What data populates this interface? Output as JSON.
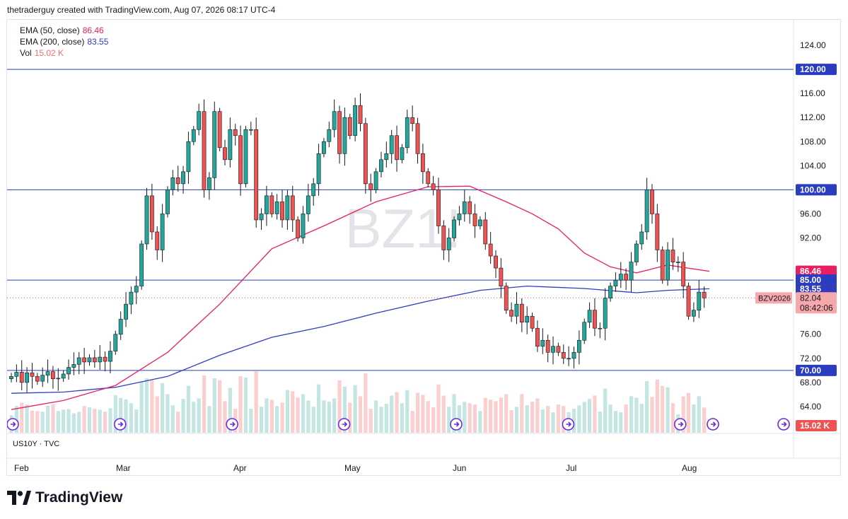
{
  "header": {
    "text": "thetraderguy created with TradingView.com, Aug 07, 2026 08:17 UTC-4"
  },
  "legend": {
    "ema50": {
      "label": "EMA (50, close)",
      "value": "86.46",
      "color": "#e91e63"
    },
    "ema200": {
      "label": "EMA (200, close)",
      "value": "83.55",
      "color": "#2f3dbd"
    },
    "vol": {
      "label": "Vol",
      "value": "15.02 K",
      "color": "#f06e75"
    }
  },
  "watermark": "BZ1!",
  "sub_pane_label": "US10Y · TVC",
  "brand": {
    "name": "TradingView"
  },
  "colors": {
    "up": "#26a69a",
    "down": "#ef5350",
    "hline": "#2a3dc0",
    "grid": "#e0e3eb"
  },
  "chart_data": {
    "type": "candlestick",
    "ylim": [
      58,
      126
    ],
    "y_ticks": [
      "124.00",
      "116.00",
      "112.00",
      "108.00",
      "104.00",
      "96.00",
      "92.00",
      "76.00",
      "72.00",
      "68.00",
      "64.00"
    ],
    "x_ticks": [
      "Feb",
      "Mar",
      "Apr",
      "May",
      "Jun",
      "Jul",
      "Aug"
    ],
    "horizontal_lines": [
      120,
      100,
      85,
      70
    ],
    "price_labels": [
      {
        "text": "120.00",
        "value": 120,
        "bg": "#2a3dc0"
      },
      {
        "text": "100.00",
        "value": 100,
        "bg": "#2a3dc0"
      },
      {
        "text": "86.46",
        "value": 86.46,
        "bg": "#e91e63"
      },
      {
        "text": "85.00",
        "value": 85,
        "bg": "#2a3dc0"
      },
      {
        "text": "83.55",
        "value": 83.55,
        "bg": "#2f3dbd"
      },
      {
        "text": "70.00",
        "value": 70,
        "bg": "#2a3dc0"
      }
    ],
    "last_price": {
      "symbol": "BZV2026",
      "value": "82.04",
      "countdown": "08:42:06"
    },
    "volume_last": "15.02 K",
    "days": [
      "Feb 02",
      "Feb 03",
      "Feb 04",
      "Feb 05",
      "Feb 06",
      "Feb 09",
      "Feb 10",
      "Feb 11",
      "Feb 12",
      "Feb 13",
      "Feb 16",
      "Feb 17",
      "Feb 18",
      "Feb 19",
      "Feb 20",
      "Feb 23",
      "Feb 24",
      "Feb 25",
      "Feb 26",
      "Feb 27",
      "Mar 02",
      "Mar 03",
      "Mar 04",
      "Mar 05",
      "Mar 06",
      "Mar 09",
      "Mar 10",
      "Mar 11",
      "Mar 12",
      "Mar 13",
      "Mar 16",
      "Mar 17",
      "Mar 18",
      "Mar 19",
      "Mar 20",
      "Mar 23",
      "Mar 24",
      "Mar 25",
      "Mar 26",
      "Mar 27",
      "Mar 30",
      "Mar 31",
      "Apr 01",
      "Apr 02",
      "Apr 03",
      "Apr 06",
      "Apr 07",
      "Apr 08",
      "Apr 09",
      "Apr 10",
      "Apr 13",
      "Apr 14",
      "Apr 15",
      "Apr 16",
      "Apr 17",
      "Apr 20",
      "Apr 21",
      "Apr 22",
      "Apr 23",
      "Apr 24",
      "Apr 27",
      "Apr 28",
      "Apr 29",
      "Apr 30",
      "May 01",
      "May 04",
      "May 05",
      "May 06",
      "May 07",
      "May 08",
      "May 11",
      "May 12",
      "May 13",
      "May 14",
      "May 15",
      "May 18",
      "May 19",
      "May 20",
      "May 21",
      "May 22",
      "May 25",
      "May 26",
      "May 27",
      "May 28",
      "May 29",
      "Jun 01",
      "Jun 02",
      "Jun 03",
      "Jun 04",
      "Jun 05",
      "Jun 08",
      "Jun 09",
      "Jun 10",
      "Jun 11",
      "Jun 12",
      "Jun 15",
      "Jun 16",
      "Jun 17",
      "Jun 18",
      "Jun 19",
      "Jun 22",
      "Jun 23",
      "Jun 24",
      "Jun 25",
      "Jun 26",
      "Jun 29",
      "Jun 30",
      "Jul 01",
      "Jul 02",
      "Jul 03",
      "Jul 06",
      "Jul 07",
      "Jul 08",
      "Jul 09",
      "Jul 10",
      "Jul 13",
      "Jul 14",
      "Jul 15",
      "Jul 16",
      "Jul 17",
      "Jul 20",
      "Jul 21",
      "Jul 22",
      "Jul 23",
      "Jul 24",
      "Jul 27",
      "Jul 28",
      "Jul 29",
      "Jul 30",
      "Jul 31",
      "Aug 03",
      "Aug 04",
      "Aug 05",
      "Aug 06",
      "Aug 07"
    ],
    "closes": [
      69.0,
      69.7,
      68.0,
      69.6,
      69.0,
      68.2,
      69.2,
      69.8,
      68.6,
      68.7,
      69.4,
      70.5,
      71.0,
      72.1,
      71.4,
      72.1,
      71.4,
      72.2,
      71.5,
      73.2,
      76.0,
      78.5,
      81.0,
      83.0,
      84.0,
      91.0,
      99.0,
      93.0,
      90.0,
      96.0,
      100.0,
      102.0,
      101.0,
      103.0,
      108.0,
      110.0,
      113.0,
      100.0,
      102.0,
      113.0,
      107.0,
      105.0,
      110.0,
      109.0,
      101.0,
      110.0,
      110.0,
      95.0,
      96.0,
      99.0,
      96.0,
      98.0,
      95.0,
      99.0,
      95.0,
      92.0,
      96.0,
      99.0,
      101.0,
      106.0,
      108.0,
      110.0,
      113.0,
      106.0,
      112.0,
      109.0,
      114.0,
      111.0,
      101.0,
      100.0,
      103.0,
      105.0,
      106.0,
      109.0,
      105.0,
      107.0,
      112.0,
      111.0,
      106.0,
      103.0,
      101.0,
      100.0,
      94.0,
      90.0,
      92.0,
      95.0,
      96.0,
      98.0,
      96.0,
      94.0,
      95.0,
      91.0,
      89.0,
      87.0,
      84.0,
      80.0,
      79.0,
      81.0,
      78.0,
      79.0,
      77.0,
      74.0,
      75.0,
      73.0,
      74.0,
      73.0,
      72.0,
      72.0,
      73.0,
      75.0,
      78.0,
      80.0,
      77.0,
      77.0,
      82.0,
      84.0,
      85.0,
      86.0,
      85.0,
      88.0,
      91.0,
      93.0,
      100.0,
      96.0,
      90.0,
      85.0,
      90.0,
      88.0,
      88.0,
      84.0,
      79.0,
      80.0,
      83.0,
      82.04
    ],
    "ema50_series": [
      [
        0,
        63.5
      ],
      [
        10,
        65
      ],
      [
        20,
        67.5
      ],
      [
        30,
        73
      ],
      [
        40,
        81
      ],
      [
        50,
        90.2
      ],
      [
        60,
        94
      ],
      [
        70,
        98
      ],
      [
        80,
        100.5
      ],
      [
        88,
        100.6
      ],
      [
        95,
        98
      ],
      [
        100,
        96
      ],
      [
        105,
        93.5
      ],
      [
        110,
        89.5
      ],
      [
        115,
        87.2
      ],
      [
        120,
        86.2
      ],
      [
        126,
        87.5
      ],
      [
        134,
        86.46
      ]
    ],
    "ema200_series": [
      [
        0,
        66.2
      ],
      [
        10,
        66.4
      ],
      [
        20,
        67.2
      ],
      [
        30,
        69
      ],
      [
        40,
        72.5
      ],
      [
        50,
        75.5
      ],
      [
        60,
        77.3
      ],
      [
        70,
        79.5
      ],
      [
        80,
        81.5
      ],
      [
        90,
        83.3
      ],
      [
        99,
        84.0
      ],
      [
        110,
        83.6
      ],
      [
        120,
        82.9
      ],
      [
        126,
        83.3
      ],
      [
        134,
        83.55
      ]
    ]
  }
}
